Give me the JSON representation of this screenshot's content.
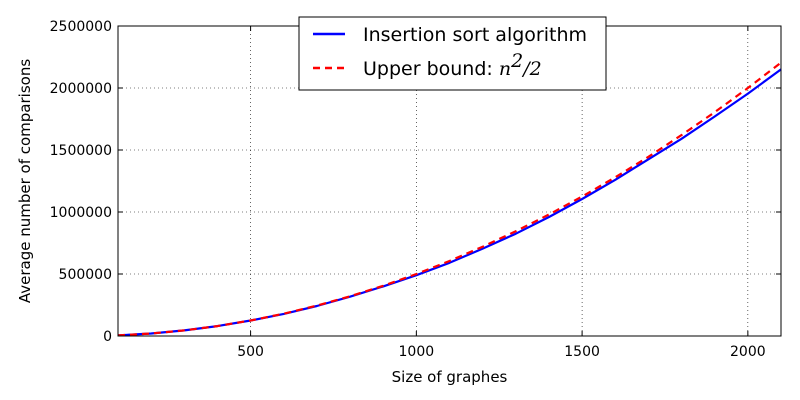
{
  "chart_data": {
    "type": "line",
    "xlabel": "Size of graphes",
    "ylabel": "Average number of comparisons",
    "xlim": [
      100,
      2100
    ],
    "ylim": [
      0,
      2500000
    ],
    "x_ticks": [
      500,
      1000,
      1500,
      2000
    ],
    "y_ticks": [
      0,
      500000,
      1000000,
      1500000,
      2000000,
      2500000
    ],
    "grid": true,
    "legend_position": "top-center",
    "series": [
      {
        "name": "Insertion sort algorithm",
        "color": "#0000ff",
        "style": "solid",
        "x": [
          100,
          200,
          300,
          400,
          500,
          600,
          700,
          800,
          900,
          1000,
          1100,
          1200,
          1300,
          1400,
          1500,
          1600,
          1700,
          1800,
          1900,
          2000,
          2100
        ],
        "y": [
          5000,
          20000,
          45000,
          80000,
          125000,
          178000,
          242000,
          317000,
          400000,
          490000,
          590000,
          705000,
          825000,
          960000,
          1105000,
          1260000,
          1425000,
          1590000,
          1770000,
          1955000,
          2150000
        ]
      },
      {
        "name_text": "Upper bound: ",
        "name_math_base": "n",
        "name_math_exp": "2",
        "name_math_tail": "/2",
        "color": "#ff0000",
        "style": "dashed",
        "x": [
          100,
          200,
          300,
          400,
          500,
          600,
          700,
          800,
          900,
          1000,
          1100,
          1200,
          1300,
          1400,
          1500,
          1600,
          1700,
          1800,
          1900,
          2000,
          2100
        ],
        "y": [
          5000,
          20000,
          45000,
          80000,
          125000,
          180000,
          245000,
          320000,
          405000,
          500000,
          605000,
          720000,
          845000,
          980000,
          1125000,
          1280000,
          1445000,
          1620000,
          1805000,
          2000000,
          2205000
        ]
      }
    ]
  }
}
